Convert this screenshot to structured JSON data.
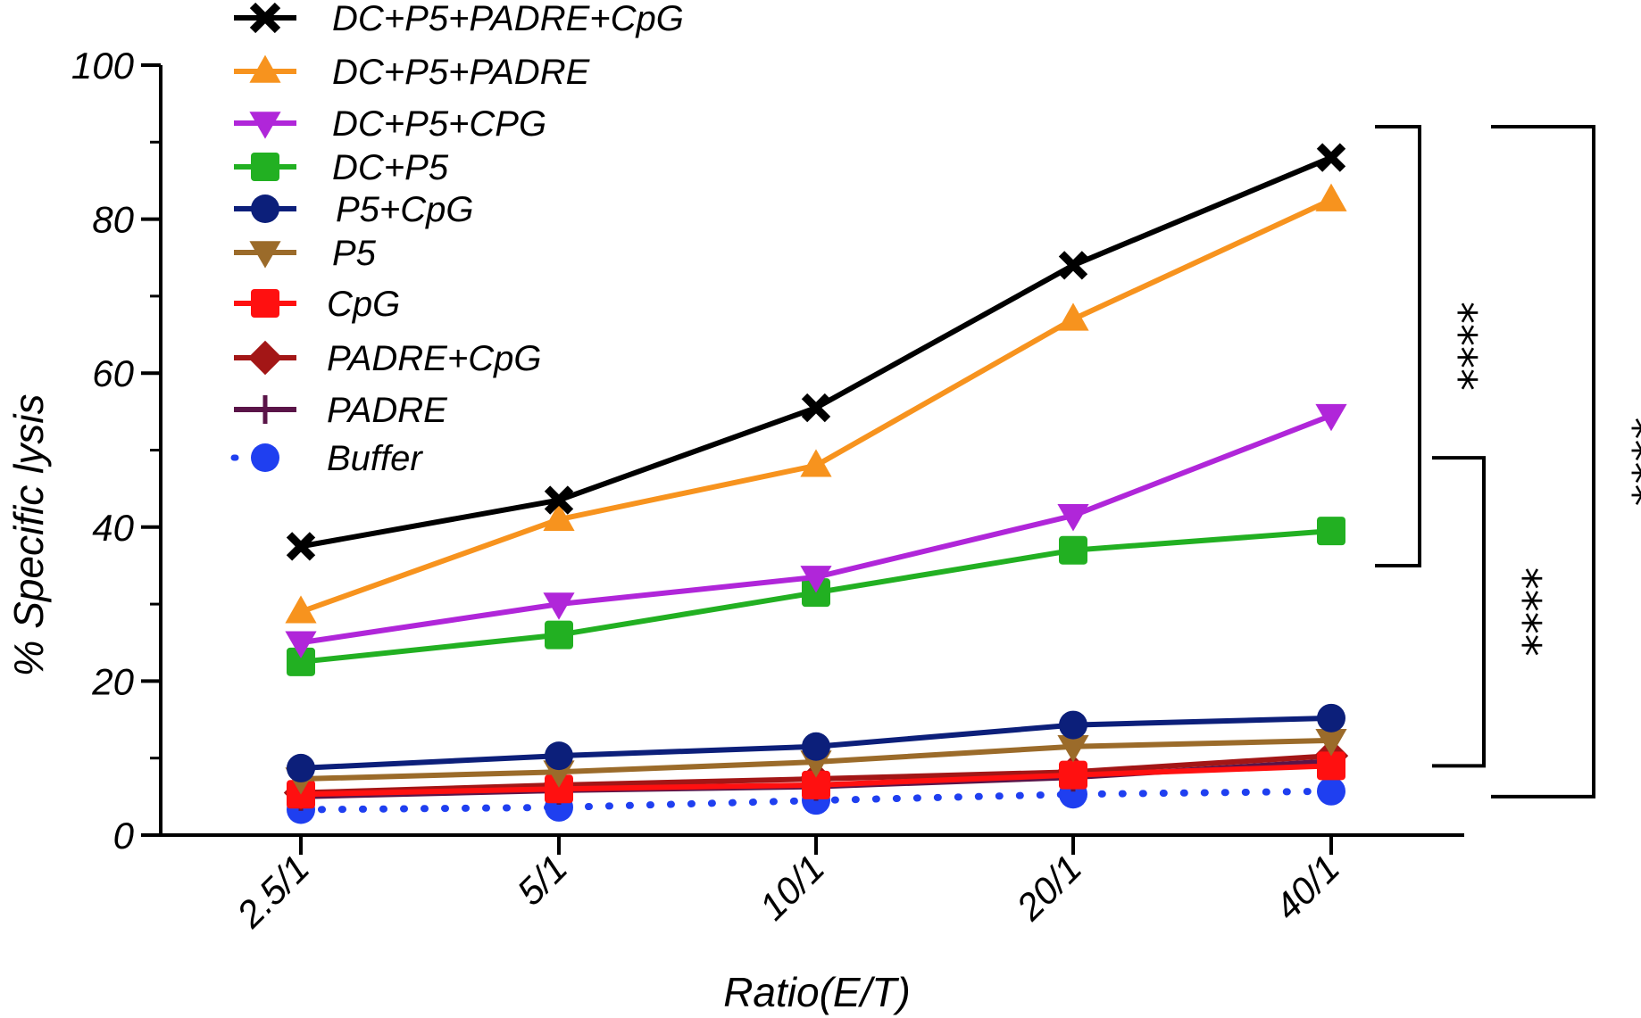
{
  "chart_data": {
    "type": "line",
    "xlabel": "Ratio(E/T)",
    "ylabel": "% Specific lysis",
    "categories": [
      "2.5/1",
      "5/1",
      "10/1",
      "20/1",
      "40/1"
    ],
    "ylim": [
      0,
      100
    ],
    "yticks": [
      "0",
      "20",
      "40",
      "60",
      "80",
      "100"
    ],
    "legend_position": "top-left",
    "series": [
      {
        "name": "DC+P5+PADRE+CpG",
        "color": "#000000",
        "marker": "x",
        "dash": "solid",
        "values": [
          37.5,
          43.5,
          55.5,
          74.0,
          88.0
        ]
      },
      {
        "name": "DC+P5+PADRE",
        "color": "#f7931e",
        "marker": "triangle-up",
        "dash": "solid",
        "values": [
          29.0,
          41.0,
          48.0,
          67.0,
          82.5
        ]
      },
      {
        "name": "DC+P5+CPG",
        "color": "#b026d9",
        "marker": "triangle-down",
        "dash": "solid",
        "values": [
          25.0,
          30.0,
          33.5,
          41.5,
          54.5
        ]
      },
      {
        "name": "DC+P5",
        "color": "#22b022",
        "marker": "square",
        "dash": "solid",
        "values": [
          22.5,
          26.0,
          31.5,
          37.0,
          39.5
        ]
      },
      {
        "name": "P5+CpG",
        "color": "#0c1f7a",
        "marker": "circle",
        "dash": "solid",
        "values": [
          8.7,
          10.3,
          11.5,
          14.3,
          15.2
        ]
      },
      {
        "name": "P5",
        "color": "#9b6b2a",
        "marker": "triangle-down",
        "dash": "solid",
        "values": [
          7.3,
          8.2,
          9.5,
          11.5,
          12.3
        ]
      },
      {
        "name": "CpG",
        "color": "#ff1010",
        "marker": "square",
        "dash": "solid",
        "values": [
          5.3,
          6.0,
          6.5,
          7.8,
          9.0
        ]
      },
      {
        "name": "PADRE+CpG",
        "color": "#a31616",
        "marker": "diamond",
        "dash": "solid",
        "values": [
          5.5,
          6.5,
          7.3,
          8.2,
          10.3
        ]
      },
      {
        "name": "PADRE",
        "color": "#5a1448",
        "marker": "plus",
        "dash": "solid",
        "values": [
          5.0,
          5.8,
          6.3,
          7.5,
          9.6
        ]
      },
      {
        "name": "Buffer",
        "color": "#1f3ff0",
        "marker": "circle",
        "dash": "dotted",
        "values": [
          3.3,
          3.6,
          4.5,
          5.3,
          5.7
        ]
      }
    ],
    "significance": [
      {
        "label": "****",
        "from_range": [
          35,
          92
        ]
      },
      {
        "label": "****",
        "from_range": [
          9,
          49
        ]
      },
      {
        "label": "****",
        "from_range": [
          5,
          92
        ]
      }
    ]
  }
}
